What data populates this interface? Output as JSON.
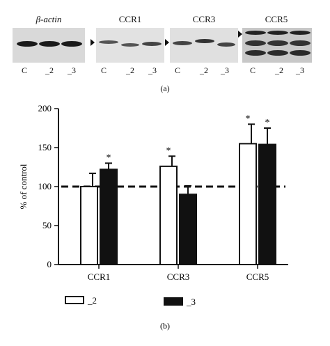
{
  "panel_a": {
    "caption": "(a)",
    "blots": [
      {
        "name": "β-actin",
        "lanes": [
          "C",
          "_2",
          "_3"
        ]
      },
      {
        "name": "CCR1",
        "lanes": [
          "C",
          "_2",
          "_3"
        ]
      },
      {
        "name": "CCR3",
        "lanes": [
          "C",
          "_2",
          "_3"
        ]
      },
      {
        "name": "CCR5",
        "lanes": [
          "C",
          "_2",
          "_3"
        ]
      }
    ]
  },
  "panel_b": {
    "caption": "(b)"
  },
  "chart_data": {
    "type": "bar",
    "categories": [
      "CCR1",
      "CCR3",
      "CCR5"
    ],
    "series": [
      {
        "name": "_2",
        "values": [
          100,
          126,
          155
        ],
        "errors": [
          17,
          13,
          25
        ],
        "significant": [
          false,
          true,
          true
        ],
        "color": "#ffffff"
      },
      {
        "name": "_3",
        "values": [
          122,
          90,
          154
        ],
        "errors": [
          8,
          11,
          21
        ],
        "significant": [
          true,
          false,
          true
        ],
        "color": "#111111"
      }
    ],
    "ylabel": "% of control",
    "ylim": [
      0,
      200
    ],
    "yticks": [
      0,
      50,
      100,
      150,
      200
    ],
    "reference_line": 100,
    "significance_marker": "*",
    "legend_position": "bottom"
  }
}
